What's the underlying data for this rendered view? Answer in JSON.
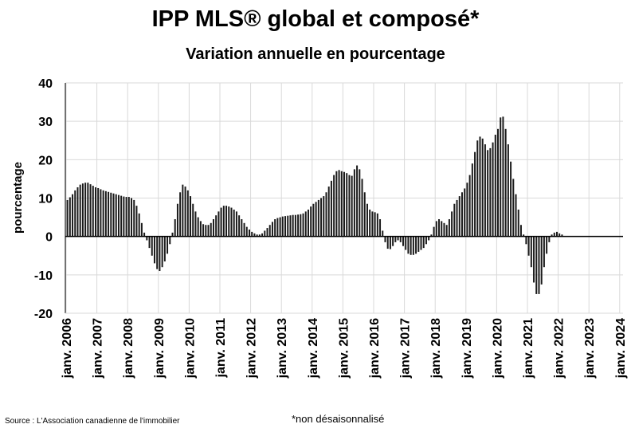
{
  "title": "IPP MLS® global et composé*",
  "subtitle": "Variation annuelle en pourcentage",
  "source": "Source : L'Association canadienne de l'immobilier",
  "footnote": "*non désaisonnalisé",
  "colors": {
    "bar": "#1a1a1a",
    "grid": "#d9d9d9",
    "axis": "#000000"
  },
  "chart_data": {
    "type": "bar",
    "title": "IPP MLS® global et composé*",
    "subtitle": "Variation annuelle en pourcentage",
    "xlabel": "",
    "ylabel": "pourcentage",
    "ylim": [
      -20,
      40
    ],
    "yticks": [
      -20,
      -10,
      0,
      10,
      20,
      30,
      40
    ],
    "grid": true,
    "x_start": "2006-01",
    "frequency": "monthly",
    "xtick_labels": [
      "janv. 2006",
      "janv. 2007",
      "janv. 2008",
      "janv. 2009",
      "janv. 2010",
      "janv. 2011",
      "janv. 2012",
      "janv. 2013",
      "janv. 2014",
      "janv. 2015",
      "janv. 2016",
      "janv. 2017",
      "janv. 2018",
      "janv. 2019",
      "janv. 2020",
      "janv. 2021",
      "janv. 2022",
      "janv. 2023",
      "janv. 2024"
    ],
    "values": [
      9.5,
      10.2,
      11.0,
      12.0,
      12.8,
      13.5,
      13.8,
      14.0,
      14.0,
      13.6,
      13.2,
      12.8,
      12.6,
      12.3,
      12.0,
      11.8,
      11.6,
      11.4,
      11.2,
      11.0,
      10.8,
      10.6,
      10.4,
      10.3,
      10.3,
      10.0,
      9.5,
      8.0,
      6.0,
      3.5,
      1.0,
      -1.0,
      -3.0,
      -5.0,
      -7.0,
      -8.5,
      -9.0,
      -8.0,
      -6.5,
      -4.5,
      -2.0,
      1.0,
      4.5,
      8.5,
      11.5,
      13.5,
      13.0,
      12.0,
      10.5,
      8.5,
      6.5,
      5.0,
      4.0,
      3.2,
      3.0,
      3.0,
      3.5,
      4.5,
      5.5,
      6.5,
      7.5,
      8.0,
      8.0,
      7.8,
      7.5,
      7.0,
      6.5,
      5.5,
      4.5,
      3.5,
      2.5,
      1.8,
      1.2,
      0.8,
      0.5,
      0.5,
      0.8,
      1.5,
      2.2,
      3.0,
      3.8,
      4.5,
      4.8,
      5.0,
      5.2,
      5.3,
      5.4,
      5.5,
      5.6,
      5.6,
      5.7,
      5.8,
      6.0,
      6.5,
      7.0,
      7.8,
      8.5,
      9.0,
      9.5,
      10.0,
      10.5,
      11.5,
      13.0,
      14.5,
      16.0,
      17.0,
      17.3,
      17.0,
      16.8,
      16.5,
      16.0,
      15.8,
      17.5,
      18.5,
      17.5,
      15.0,
      11.5,
      8.5,
      7.0,
      6.5,
      6.3,
      6.0,
      4.5,
      1.5,
      -1.5,
      -3.2,
      -3.3,
      -2.5,
      -1.5,
      -1.0,
      -1.5,
      -2.5,
      -3.5,
      -4.5,
      -4.8,
      -4.8,
      -4.5,
      -4.0,
      -3.5,
      -3.0,
      -2.0,
      -1.0,
      0.5,
      2.5,
      4.0,
      4.5,
      4.0,
      3.5,
      3.0,
      4.5,
      6.5,
      8.5,
      9.5,
      10.5,
      11.5,
      12.5,
      14.0,
      16.0,
      19.0,
      22.0,
      25.0,
      26.0,
      25.5,
      24.0,
      22.5,
      23.0,
      24.5,
      26.5,
      28.0,
      31.0,
      31.2,
      28.0,
      24.0,
      19.5,
      15.0,
      11.0,
      7.0,
      3.0,
      0.5,
      -2.0,
      -5.0,
      -8.0,
      -12.0,
      -15.0,
      -15.0,
      -12.5,
      -8.0,
      -4.5,
      -1.5,
      0.5,
      1.0,
      1.2,
      0.8,
      0.5
    ]
  }
}
